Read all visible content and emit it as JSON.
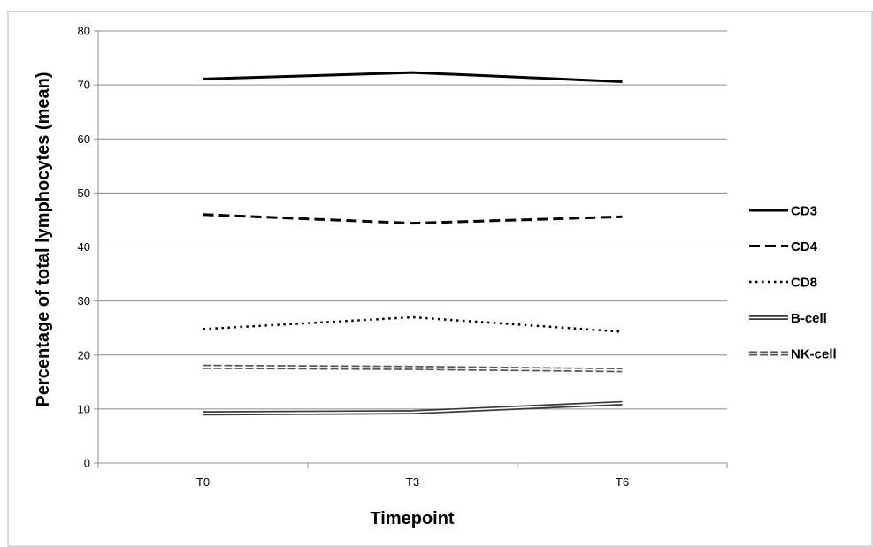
{
  "chart_data": {
    "type": "line",
    "categories": [
      "T0",
      "T3",
      "T6"
    ],
    "xlabel": "Timepoint",
    "ylabel": "Percentage of total lymphocytes (mean)",
    "ylim": [
      0,
      80
    ],
    "yticks": [
      0,
      10,
      20,
      30,
      40,
      50,
      60,
      70,
      80
    ],
    "grid": true,
    "legend_position": "right",
    "series": [
      {
        "name": "CD3",
        "values": [
          71.1,
          72.3,
          70.6
        ],
        "style": "solid"
      },
      {
        "name": "CD4",
        "values": [
          46.0,
          44.4,
          45.6
        ],
        "style": "dashed"
      },
      {
        "name": "CD8",
        "values": [
          24.8,
          27.0,
          24.3
        ],
        "style": "dotted"
      },
      {
        "name": "B-cell",
        "values": [
          9.2,
          9.4,
          11.1
        ],
        "style": "double"
      },
      {
        "name": "NK-cell",
        "values": [
          17.8,
          17.6,
          17.2
        ],
        "style": "double-dashed"
      }
    ]
  }
}
